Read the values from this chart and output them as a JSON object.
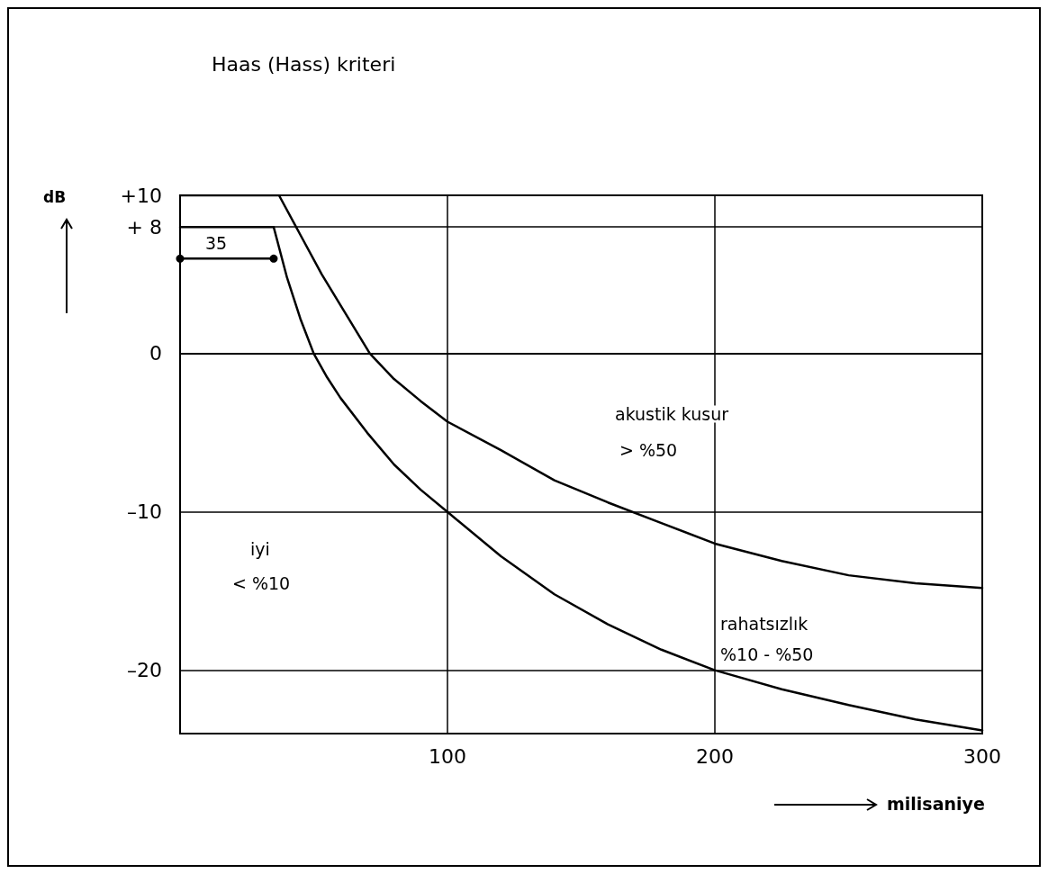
{
  "chart_data": {
    "type": "line",
    "title": "Haas (Hass) kriteri",
    "xlabel": "milisaniye",
    "ylabel": "dB",
    "xlim": [
      0,
      300
    ],
    "xticks": [
      100,
      200,
      300
    ],
    "ylim": [
      -24,
      10
    ],
    "yticks": [
      {
        "value": 10,
        "label": "+10"
      },
      {
        "value": 8,
        "label": "+ 8"
      },
      0,
      {
        "value": -10,
        "label": "–10"
      },
      {
        "value": -20,
        "label": "–20"
      }
    ],
    "grid": true,
    "marker": "none",
    "line_style": "solid",
    "series": [
      {
        "color": "#000000",
        "x": [
          0,
          37,
          45,
          53,
          62,
          71,
          80,
          90,
          100,
          120,
          140,
          160,
          180,
          200,
          225,
          250,
          275,
          300
        ],
        "values": [
          10,
          10,
          7.5,
          5,
          2.5,
          0,
          -1.6,
          -3,
          -4.3,
          -6.1,
          -8,
          -9.4,
          -10.7,
          -12,
          -13.1,
          -14,
          -14.5,
          -14.8
        ]
      },
      {
        "color": "#000000",
        "x": [
          0,
          35,
          40,
          45,
          50,
          55,
          60,
          70,
          80,
          90,
          100,
          120,
          140,
          160,
          180,
          200,
          225,
          250,
          275,
          300
        ],
        "values": [
          8,
          8,
          4.8,
          2.2,
          0,
          -1.5,
          -2.8,
          -5,
          -7,
          -8.6,
          -10,
          -12.8,
          -15.2,
          -17.1,
          -18.7,
          -20,
          -21.2,
          -22.2,
          -23.1,
          -23.8
        ]
      },
      {
        "color": "#000000",
        "marker": "circle",
        "x": [
          0,
          35
        ],
        "values": [
          6,
          6
        ]
      }
    ],
    "annotations": [
      "35",
      "akustik kusur",
      "> %50",
      "iyi",
      "< %10",
      "rahatsızlık",
      "%10 - %50"
    ]
  }
}
